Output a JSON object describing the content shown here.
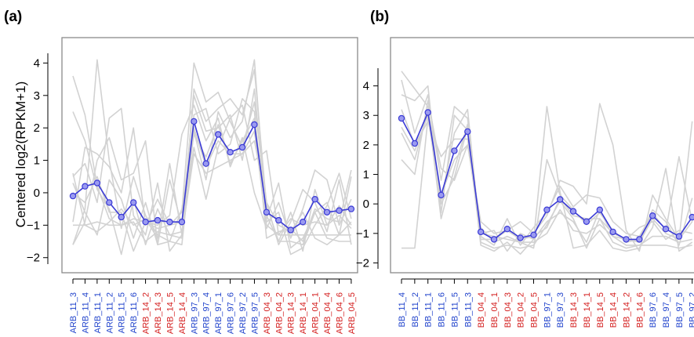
{
  "figure": {
    "colors": {
      "blue_label": "#2244cc",
      "red_label": "#d42020",
      "mean_line": "#3b3bd6",
      "mean_point_fill": "#9a9af0",
      "background_lines": "#d2d2d2"
    }
  },
  "chart_data": [
    {
      "panel_label": "(a)",
      "type": "line",
      "ylabel": "Centered log2(RPKM+1)",
      "ylim": [
        -2.2,
        4.3
      ],
      "yticks": [
        -2,
        -1,
        0,
        1,
        2,
        3,
        4
      ],
      "grid": false,
      "categories": [
        "ARB_11_3",
        "ARB_11_4",
        "ARB_11_1",
        "ARB_11_2",
        "ARB_11_5",
        "ARB_11_6",
        "ARB_14_2",
        "ARB_14_3",
        "ARB_14_5",
        "ARB_14_4",
        "ARB_97_3",
        "ARB_97_4",
        "ARB_97_1",
        "ARB_97_6",
        "ARB_97_2",
        "ARB_97_5",
        "ARB_04_3",
        "ARB_04_2",
        "ARB_14_3",
        "ARB_14_1",
        "ARB_04_1",
        "ARB_04_4",
        "ARB_04_6",
        "ARB_04_5"
      ],
      "category_colors": [
        "blue",
        "blue",
        "blue",
        "blue",
        "blue",
        "blue",
        "red",
        "red",
        "red",
        "red",
        "blue",
        "blue",
        "blue",
        "blue",
        "blue",
        "blue",
        "red",
        "red",
        "red",
        "red",
        "red",
        "red",
        "red",
        "red"
      ],
      "series": [
        {
          "role": "mean",
          "values": [
            -0.1,
            0.2,
            0.3,
            -0.3,
            -0.75,
            -0.3,
            -0.9,
            -0.85,
            -0.9,
            -0.9,
            2.2,
            0.9,
            1.8,
            1.25,
            1.4,
            2.1,
            -0.6,
            -0.85,
            -1.15,
            -0.9,
            -0.2,
            -0.6,
            -0.55,
            -0.5
          ]
        }
      ],
      "background_series": [
        [
          3.6,
          2.4,
          0.2,
          -0.8,
          -1.0,
          -0.9,
          -1.5,
          -1.2,
          -1.3,
          -1.4,
          3.2,
          2.2,
          2.6,
          2.9,
          2.4,
          3.8,
          -0.4,
          -1.5,
          -1.5,
          -1.6,
          -0.6,
          -1.4,
          -1.5,
          -1.5
        ],
        [
          -1.6,
          -0.5,
          4.1,
          1.0,
          -1.1,
          0.5,
          -0.7,
          -1.3,
          -1.5,
          -1.6,
          1.9,
          0.4,
          2.5,
          1.7,
          2.2,
          4.1,
          -0.9,
          -0.6,
          -1.9,
          -1.7,
          -1.0,
          -0.4,
          0.6,
          -0.8
        ],
        [
          0.5,
          0.9,
          -0.3,
          2.3,
          2.6,
          -0.7,
          -1.3,
          0.3,
          -1.8,
          -1.3,
          1.2,
          0.6,
          0.8,
          1.0,
          1.2,
          1.6,
          -0.3,
          -1.0,
          -1.2,
          -0.6,
          -1.4,
          -1.6,
          -1.3,
          -0.9
        ],
        [
          -0.9,
          1.4,
          1.2,
          0.8,
          0.0,
          2.0,
          -1.0,
          -0.2,
          -1.0,
          -0.6,
          4.0,
          2.8,
          3.1,
          2.2,
          1.4,
          2.8,
          -0.3,
          -1.6,
          -0.9,
          0.1,
          -0.3,
          -1.2,
          0.4,
          -1.6
        ],
        [
          0.0,
          -0.3,
          0.5,
          -0.6,
          -0.6,
          -1.8,
          -0.9,
          -1.0,
          -0.7,
          1.8,
          2.7,
          1.6,
          2.3,
          0.8,
          1.7,
          0.0,
          -1.1,
          -0.3,
          -1.4,
          -0.5,
          0.7,
          0.4,
          -1.0,
          -0.2
        ],
        [
          2.5,
          1.6,
          0.1,
          -0.5,
          -1.9,
          -0.2,
          -1.6,
          -0.5,
          -1.3,
          -1.2,
          1.4,
          -0.2,
          1.4,
          2.3,
          2.7,
          1.0,
          1.3,
          -1.3,
          -0.8,
          -1.0,
          -0.9,
          -1.0,
          -0.4,
          -1.0
        ],
        [
          -1.6,
          -0.9,
          1.0,
          1.7,
          0.4,
          0.6,
          1.6,
          -1.6,
          0.4,
          -1.0,
          3.0,
          1.9,
          2.0,
          2.4,
          1.0,
          3.2,
          -0.8,
          0.3,
          -1.7,
          -1.4,
          -0.6,
          -0.3,
          -1.3,
          0.5
        ],
        [
          0.6,
          -1.0,
          -1.2,
          -0.9,
          -0.5,
          -1.0,
          -0.8,
          -1.4,
          0.9,
          -1.3,
          2.4,
          2.6,
          1.2,
          1.5,
          2.9,
          2.5,
          -1.4,
          -1.2,
          -1.1,
          -1.5,
          -0.5,
          -0.8,
          -0.9,
          0.7
        ],
        [
          -1.0,
          -1.0,
          -0.9,
          -1.0,
          -1.0,
          -0.8,
          -0.9,
          -1.1,
          -1.0,
          -0.9,
          2.0,
          0.8,
          1.6,
          1.2,
          1.2,
          1.9,
          -1.0,
          -1.3,
          -1.3,
          -1.3,
          -1.3,
          -1.3,
          -1.3,
          -1.3
        ],
        [
          0.3,
          -0.6,
          -1.3,
          0.4,
          -0.2,
          -1.4,
          -0.3,
          -1.6,
          -1.5,
          -0.5,
          1.8,
          1.1,
          2.1,
          0.9,
          1.6,
          2.3,
          -0.7,
          -1.5,
          -0.6,
          -1.8,
          0.1,
          -1.0,
          -0.7,
          -1.1
        ]
      ]
    },
    {
      "panel_label": "(b)",
      "type": "line",
      "ylabel": "",
      "ylim": [
        -2.2,
        4.6
      ],
      "yticks": [
        -2,
        -1,
        0,
        1,
        2,
        3,
        4
      ],
      "grid": false,
      "categories": [
        "BB_11_4",
        "BB_11_2",
        "BB_11_1",
        "BB_11_6",
        "BB_11_5",
        "BB_11_3",
        "BB_04_4",
        "BB_04_1",
        "BB_04_3",
        "BB_04_2",
        "BB_04_5",
        "BB_97_1",
        "BB_97_3",
        "BB_14_3",
        "BB_14_1",
        "BB_14_5",
        "BB_14_4",
        "BB_14_2",
        "BB_14_6",
        "BB_97_6",
        "BB_97_4",
        "BB_97_5",
        "BB_97_2"
      ],
      "category_colors": [
        "blue",
        "blue",
        "blue",
        "blue",
        "blue",
        "blue",
        "red",
        "red",
        "red",
        "red",
        "red",
        "blue",
        "blue",
        "red",
        "red",
        "red",
        "red",
        "red",
        "red",
        "blue",
        "blue",
        "blue",
        "blue"
      ],
      "series": [
        {
          "role": "mean",
          "values": [
            2.9,
            2.05,
            3.1,
            0.3,
            1.8,
            2.45,
            -0.95,
            -1.2,
            -0.85,
            -1.15,
            -1.05,
            -0.2,
            0.15,
            -0.25,
            -0.6,
            -0.2,
            -0.95,
            -1.2,
            -1.2,
            -0.4,
            -0.85,
            -1.1,
            -0.45
          ]
        }
      ],
      "background_series": [
        [
          4.5,
          3.9,
          3.3,
          0.1,
          2.4,
          3.2,
          -1.3,
          -1.5,
          -1.4,
          -1.5,
          -1.4,
          -0.7,
          0.1,
          -0.5,
          -1.5,
          -0.5,
          -1.3,
          -1.5,
          -1.4,
          -1.4,
          -1.4,
          -1.5,
          -1.4
        ],
        [
          3.7,
          3.5,
          4.0,
          -0.3,
          3.0,
          2.5,
          -1.4,
          -1.6,
          -1.3,
          -1.7,
          -1.2,
          3.3,
          0.4,
          -1.5,
          -1.4,
          -0.9,
          -1.5,
          -1.6,
          -1.5,
          -0.8,
          1.2,
          -1.6,
          -1.3
        ],
        [
          1.5,
          1.0,
          3.5,
          1.2,
          0.8,
          2.0,
          -0.6,
          -1.0,
          -0.9,
          -0.6,
          -1.0,
          -0.4,
          0.8,
          0.6,
          0.0,
          3.4,
          2.0,
          -0.9,
          -1.6,
          0.3,
          -0.5,
          -1.2,
          2.8
        ],
        [
          4.2,
          2.4,
          3.7,
          0.8,
          3.3,
          2.9,
          -1.1,
          -1.4,
          -0.5,
          -1.4,
          -0.8,
          -0.3,
          0.6,
          -0.1,
          0.3,
          0.2,
          -0.6,
          -1.0,
          -1.1,
          -0.3,
          -0.9,
          1.6,
          -0.6
        ],
        [
          -1.5,
          -1.5,
          2.9,
          0.3,
          1.5,
          2.0,
          -0.8,
          -1.3,
          -1.1,
          -1.3,
          -1.5,
          1.5,
          0.3,
          -0.2,
          -0.7,
          -0.3,
          -0.9,
          -1.3,
          -1.2,
          -0.2,
          -0.6,
          -1.4,
          0.2
        ],
        [
          2.4,
          1.5,
          3.2,
          -0.5,
          1.2,
          2.7,
          -1.0,
          -0.9,
          -1.6,
          -1.0,
          -1.2,
          -0.6,
          -0.3,
          -0.6,
          -1.3,
          -0.2,
          -1.1,
          -1.2,
          -0.8,
          -0.6,
          -1.2,
          -0.9,
          -1.0
        ],
        [
          3.2,
          2.0,
          2.8,
          1.6,
          2.2,
          2.2,
          -1.2,
          -1.2,
          -0.9,
          -1.2,
          -1.1,
          -0.8,
          0.2,
          -0.4,
          -0.5,
          -0.5,
          -1.0,
          -1.2,
          -1.3,
          -0.5,
          -1.0,
          -1.2,
          -0.6
        ],
        [
          2.6,
          1.8,
          3.0,
          0.0,
          0.9,
          2.6,
          -1.0,
          -1.1,
          -1.2,
          -1.3,
          -1.3,
          -1.0,
          -0.2,
          -0.9,
          -1.0,
          -0.7,
          -1.1,
          -1.4,
          -1.4,
          -1.1,
          -1.1,
          -1.3,
          -1.2
        ]
      ]
    }
  ]
}
